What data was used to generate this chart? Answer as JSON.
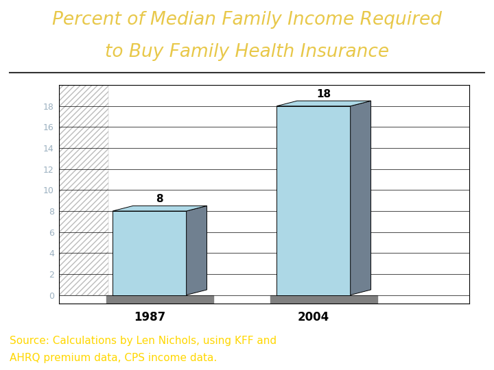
{
  "title_line1": "Percent of Median Family Income Required",
  "title_line2": "to Buy Family Health Insurance",
  "title_color": "#E8C84A",
  "categories": [
    "1987",
    "2004"
  ],
  "values": [
    8,
    18
  ],
  "bar_face_color": "#ADD8E6",
  "bar_side_color": "#708090",
  "bar_shadow_color": "#696969",
  "ylim": [
    0,
    20
  ],
  "ytick_max": 18,
  "yticks": [
    0,
    2,
    4,
    6,
    8,
    10,
    12,
    14,
    16,
    18
  ],
  "bg_color": "#FFFFFF",
  "chart_bg": "#FFFFFF",
  "footer_bg": "#1B6CA8",
  "footer_text_line1": "Source: Calculations by Len Nichols, using KFF and",
  "footer_text_line2": "AHRQ premium data, CPS income data.",
  "footer_text_color": "#FFD700",
  "separator_color": "#333333",
  "grid_color": "#999999",
  "axis_line_color": "#000000",
  "label_fontsize": 12,
  "title_fontsize": 19,
  "value_fontsize": 11,
  "tick_fontsize": 9,
  "footer_fontsize": 11,
  "wall_hatch_color": "#BBBBBB",
  "base_color": "#808080"
}
